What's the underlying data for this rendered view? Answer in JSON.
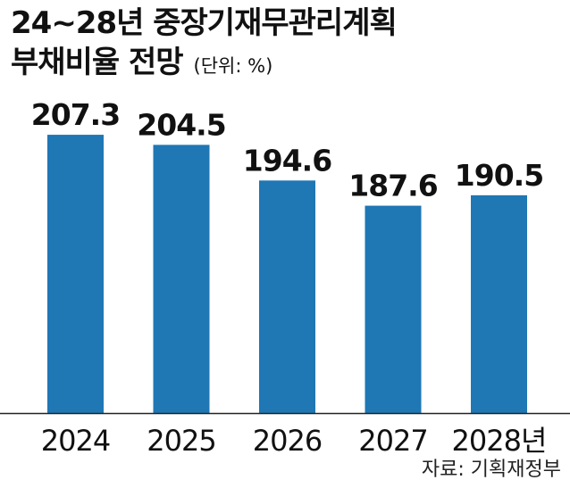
{
  "chart_data": {
    "type": "bar",
    "title": "24~28년 중장기재무관리계획",
    "subtitle": "부채비율 전망",
    "unit": "(단위: %)",
    "categories": [
      "2024",
      "2025",
      "2026",
      "2027",
      "2028년"
    ],
    "values": [
      207.3,
      204.5,
      194.6,
      187.6,
      190.5
    ],
    "value_labels": [
      "207.3",
      "204.5",
      "194.6",
      "187.6",
      "190.5"
    ],
    "ylim": [
      130,
      215
    ],
    "bar_color": "#1f77b4",
    "grid": false,
    "legend": "none"
  },
  "source": "자료: 기획재정부"
}
